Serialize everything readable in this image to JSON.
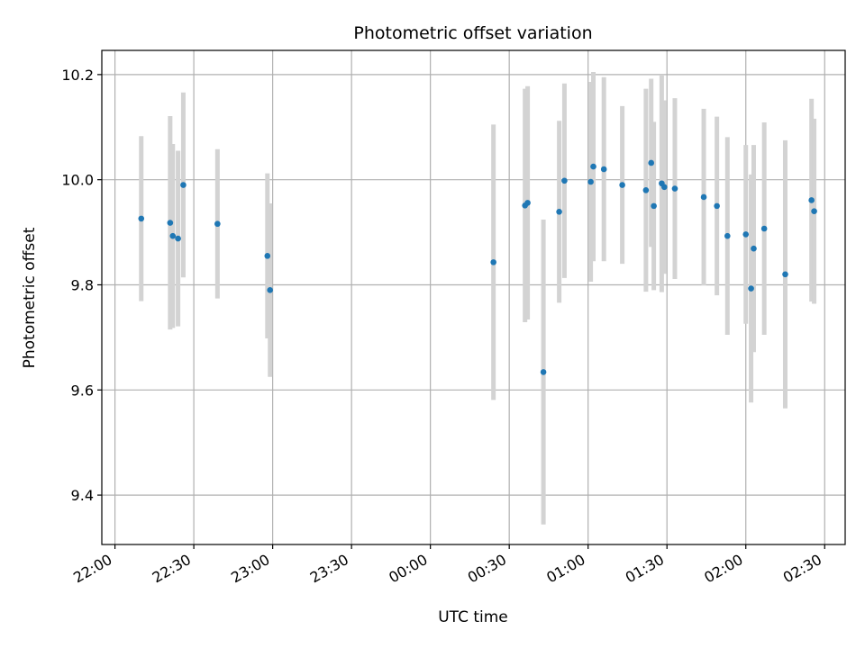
{
  "chart_data": {
    "type": "scatter",
    "title": "Photometric offset variation",
    "xlabel": "UTC time",
    "ylabel": "Photometric offset",
    "x_tick_labels": [
      "22:00",
      "22:30",
      "23:00",
      "23:30",
      "00:00",
      "00:30",
      "01:00",
      "01:30",
      "02:00",
      "02:30"
    ],
    "y_ticks": [
      9.4,
      9.6,
      9.8,
      10.0,
      10.2
    ],
    "y_tick_labels": [
      "9.4",
      "9.6",
      "9.8",
      "10.0",
      "10.2"
    ],
    "xlim_minutes_since_2200": [
      -5,
      277.8
    ],
    "ylim": [
      9.306,
      10.246
    ],
    "grid": true,
    "colors": {
      "point": "#1f77b4",
      "errorbar": "#d3d3d3",
      "grid": "#b0b0b0"
    },
    "series": [
      {
        "points": [
          {
            "x": "22:10",
            "y": 9.926,
            "err": 0.157
          },
          {
            "x": "22:21",
            "y": 9.918,
            "err": 0.203
          },
          {
            "x": "22:22",
            "y": 9.893,
            "err": 0.175
          },
          {
            "x": "22:24",
            "y": 9.888,
            "err": 0.167
          },
          {
            "x": "22:26",
            "y": 9.99,
            "err": 0.176
          },
          {
            "x": "22:39",
            "y": 9.916,
            "err": 0.142
          },
          {
            "x": "22:58",
            "y": 9.855,
            "err": 0.157
          },
          {
            "x": "22:59",
            "y": 9.79,
            "err": 0.165
          },
          {
            "x": "00:24",
            "y": 9.843,
            "err": 0.262
          },
          {
            "x": "00:36",
            "y": 9.951,
            "err": 0.222
          },
          {
            "x": "00:37",
            "y": 9.956,
            "err": 0.222
          },
          {
            "x": "00:43",
            "y": 9.634,
            "err": 0.29
          },
          {
            "x": "00:49",
            "y": 9.939,
            "err": 0.173
          },
          {
            "x": "00:51",
            "y": 9.998,
            "err": 0.185
          },
          {
            "x": "01:01",
            "y": 9.996,
            "err": 0.19
          },
          {
            "x": "01:02",
            "y": 10.025,
            "err": 0.18
          },
          {
            "x": "01:06",
            "y": 10.02,
            "err": 0.175
          },
          {
            "x": "01:13",
            "y": 9.99,
            "err": 0.15
          },
          {
            "x": "01:22",
            "y": 9.98,
            "err": 0.193
          },
          {
            "x": "01:24",
            "y": 10.032,
            "err": 0.16
          },
          {
            "x": "01:25",
            "y": 9.95,
            "err": 0.16
          },
          {
            "x": "01:28",
            "y": 9.993,
            "err": 0.207
          },
          {
            "x": "01:29",
            "y": 9.986,
            "err": 0.165
          },
          {
            "x": "01:33",
            "y": 9.983,
            "err": 0.172
          },
          {
            "x": "01:44",
            "y": 9.967,
            "err": 0.168
          },
          {
            "x": "01:49",
            "y": 9.95,
            "err": 0.17
          },
          {
            "x": "01:53",
            "y": 9.893,
            "err": 0.188
          },
          {
            "x": "02:00",
            "y": 9.896,
            "err": 0.17
          },
          {
            "x": "02:02",
            "y": 9.793,
            "err": 0.217
          },
          {
            "x": "02:03",
            "y": 9.869,
            "err": 0.197
          },
          {
            "x": "02:07",
            "y": 9.907,
            "err": 0.202
          },
          {
            "x": "02:15",
            "y": 9.82,
            "err": 0.255
          },
          {
            "x": "02:25",
            "y": 9.961,
            "err": 0.193
          },
          {
            "x": "02:26",
            "y": 9.94,
            "err": 0.176
          }
        ]
      }
    ]
  }
}
